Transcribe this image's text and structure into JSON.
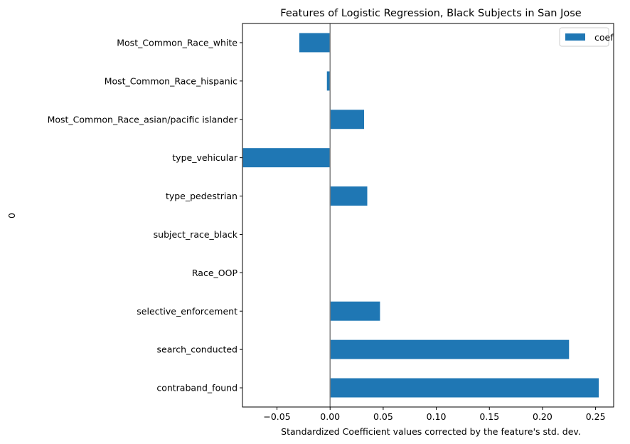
{
  "chart_data": {
    "type": "bar",
    "orientation": "horizontal",
    "title": "Features of Logistic Regression, Black Subjects in San Jose",
    "xlabel": "Standardized Coefficient values corrected by the feature's std. dev.",
    "ylabel": "0",
    "xlim": [
      -0.0825,
      0.267
    ],
    "xticks": [
      -0.05,
      0.0,
      0.05,
      0.1,
      0.15,
      0.2,
      0.25
    ],
    "xtick_labels": [
      "−0.05",
      "0.00",
      "0.05",
      "0.10",
      "0.15",
      "0.20",
      "0.25"
    ],
    "categories": [
      "contraband_found",
      "search_conducted",
      "selective_enforcement",
      "Race_OOP",
      "subject_race_black",
      "type_pedestrian",
      "type_vehicular",
      "Most_Common_Race_asian/pacific islander",
      "Most_Common_Race_hispanic",
      "Most_Common_Race_white"
    ],
    "series": [
      {
        "name": "coef",
        "color": "#1f77b4",
        "values": [
          0.253,
          0.225,
          0.047,
          0.0,
          0.0,
          0.035,
          -0.082,
          0.032,
          -0.003,
          -0.029
        ]
      }
    ],
    "zero_line_color": "#808080",
    "grid": false,
    "legend_position": "upper right"
  }
}
